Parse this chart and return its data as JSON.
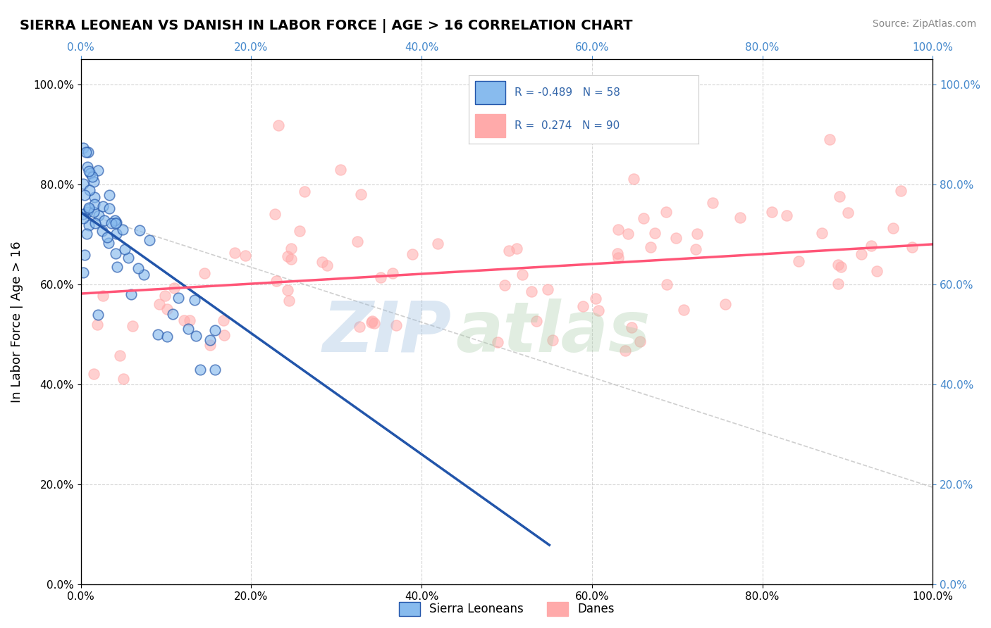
{
  "title": "SIERRA LEONEAN VS DANISH IN LABOR FORCE | AGE > 16 CORRELATION CHART",
  "source": "Source: ZipAtlas.com",
  "ylabel": "In Labor Force | Age > 16",
  "legend_label1": "Sierra Leoneans",
  "legend_label2": "Danes",
  "R1": -0.489,
  "N1": 58,
  "R2": 0.274,
  "N2": 90,
  "color_blue": "#88BBEE",
  "color_pink": "#FFAAAA",
  "color_blue_line": "#2255AA",
  "color_pink_line": "#FF5577",
  "color_gray_dashed": "#BBBBBB",
  "background_color": "#FFFFFF",
  "grid_color": "#CCCCCC",
  "xlim": [
    0.0,
    1.0
  ],
  "ylim": [
    0.0,
    1.05
  ],
  "watermark_zip": "ZIP",
  "watermark_atlas": "atlas",
  "watermark_color_zip": "#99BBDD",
  "watermark_color_atlas": "#AACCAA",
  "watermark_alpha": 0.35
}
